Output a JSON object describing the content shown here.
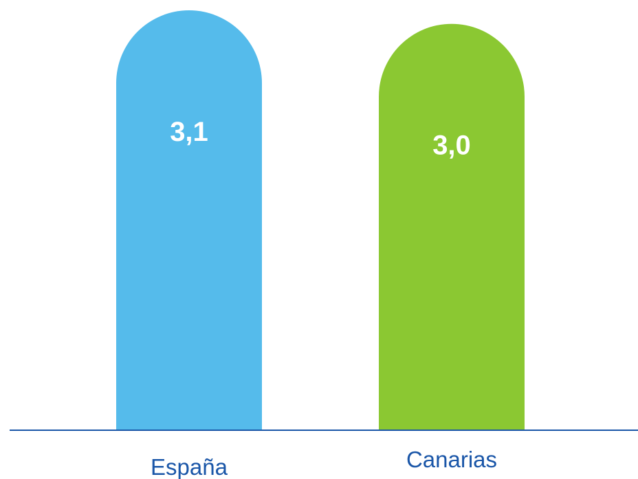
{
  "chart_data": {
    "type": "bar",
    "categories": [
      "España",
      "Canarias"
    ],
    "values": [
      3.1,
      3.0
    ],
    "value_labels": [
      "3,1",
      "3,0"
    ],
    "colors": [
      "#55bbeb",
      "#8bc832"
    ],
    "axis_color": "#1a56a8",
    "title": "",
    "xlabel": "",
    "ylabel": "",
    "grid": false,
    "legend": "none"
  }
}
